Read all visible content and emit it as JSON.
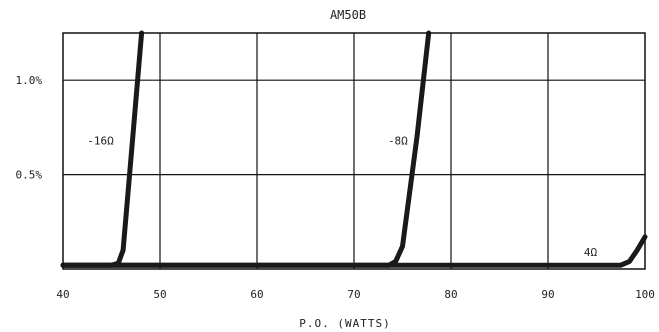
{
  "chart_data": {
    "type": "line",
    "title": "AM50B",
    "xlabel": "P.O. (WATTS)",
    "ylabel": "",
    "xlim": [
      40,
      100
    ],
    "ylim": [
      0,
      1.25
    ],
    "grid": true,
    "x_ticks": [
      {
        "value": 40,
        "label": "40"
      },
      {
        "value": 50,
        "label": "50"
      },
      {
        "value": 60,
        "label": "60"
      },
      {
        "value": 70,
        "label": "70"
      },
      {
        "value": 80,
        "label": "80"
      },
      {
        "value": 90,
        "label": "90"
      },
      {
        "value": 100,
        "label": "100"
      }
    ],
    "y_ticks": [
      {
        "value": 0.5,
        "label": "0.5%"
      },
      {
        "value": 1.0,
        "label": "1.0%"
      }
    ],
    "series": [
      {
        "name": "-16Ω",
        "label_at": [
          42.5,
          0.68
        ],
        "points": [
          [
            40,
            0.02
          ],
          [
            45,
            0.02
          ],
          [
            45.7,
            0.03
          ],
          [
            46.2,
            0.1
          ],
          [
            47.2,
            0.7
          ],
          [
            48.1,
            1.25
          ]
        ]
      },
      {
        "name": "-8Ω",
        "label_at": [
          73.5,
          0.68
        ],
        "points": [
          [
            40,
            0.02
          ],
          [
            73.6,
            0.02
          ],
          [
            74.3,
            0.04
          ],
          [
            75,
            0.12
          ],
          [
            76.5,
            0.7
          ],
          [
            77.7,
            1.25
          ]
        ]
      },
      {
        "name": "4Ω",
        "label_at": [
          93.7,
          0.09
        ],
        "points": [
          [
            40,
            0.02
          ],
          [
            97.5,
            0.02
          ],
          [
            98.4,
            0.04
          ],
          [
            99.2,
            0.1
          ],
          [
            100,
            0.17
          ]
        ]
      }
    ]
  }
}
